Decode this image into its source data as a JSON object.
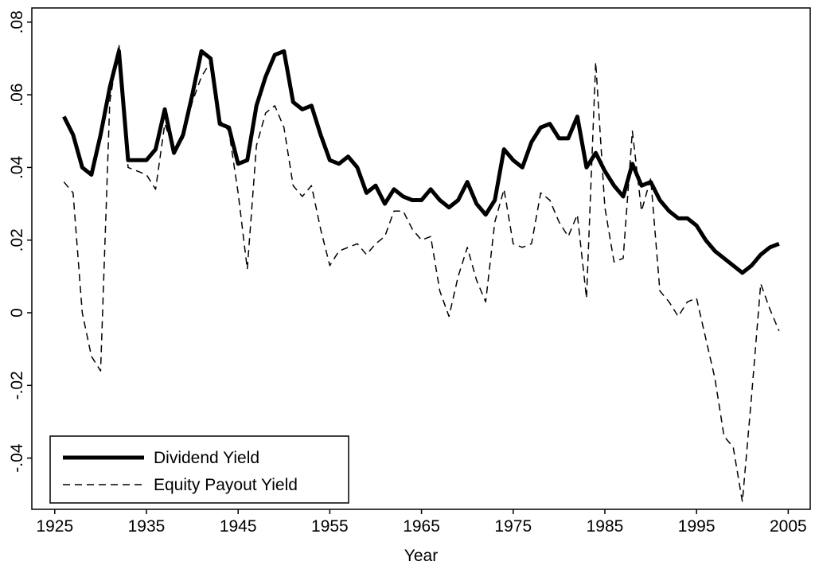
{
  "chart_data": {
    "type": "line",
    "xlabel": "Year",
    "x": [
      1926,
      1927,
      1928,
      1929,
      1930,
      1931,
      1932,
      1933,
      1934,
      1935,
      1936,
      1937,
      1938,
      1939,
      1940,
      1941,
      1942,
      1943,
      1944,
      1945,
      1946,
      1947,
      1948,
      1949,
      1950,
      1951,
      1952,
      1953,
      1954,
      1955,
      1956,
      1957,
      1958,
      1959,
      1960,
      1961,
      1962,
      1963,
      1964,
      1965,
      1966,
      1967,
      1968,
      1969,
      1970,
      1971,
      1972,
      1973,
      1974,
      1975,
      1976,
      1977,
      1978,
      1979,
      1980,
      1981,
      1982,
      1983,
      1984,
      1985,
      1986,
      1987,
      1988,
      1989,
      1990,
      1991,
      1992,
      1993,
      1994,
      1995,
      1996,
      1997,
      1998,
      1999,
      2000,
      2001,
      2002,
      2003,
      2004
    ],
    "series": [
      {
        "name": "Dividend Yield",
        "color": "#000000",
        "style": "solid",
        "values": [
          0.054,
          0.049,
          0.04,
          0.038,
          0.049,
          0.062,
          0.072,
          0.042,
          0.042,
          0.042,
          0.045,
          0.056,
          0.044,
          0.049,
          0.06,
          0.072,
          0.07,
          0.052,
          0.051,
          0.041,
          0.042,
          0.057,
          0.065,
          0.071,
          0.072,
          0.058,
          0.056,
          0.057,
          0.049,
          0.042,
          0.041,
          0.043,
          0.04,
          0.033,
          0.035,
          0.03,
          0.034,
          0.032,
          0.031,
          0.031,
          0.034,
          0.031,
          0.029,
          0.031,
          0.036,
          0.03,
          0.027,
          0.031,
          0.045,
          0.042,
          0.04,
          0.047,
          0.051,
          0.052,
          0.048,
          0.048,
          0.054,
          0.04,
          0.044,
          0.039,
          0.035,
          0.032,
          0.041,
          0.035,
          0.036,
          0.031,
          0.028,
          0.026,
          0.026,
          0.024,
          0.02,
          0.017,
          0.015,
          0.013,
          0.011,
          0.013,
          0.016,
          0.018,
          0.019
        ]
      },
      {
        "name": "Equity Payout Yield",
        "color": "#000000",
        "style": "dashed",
        "values": [
          0.036,
          0.033,
          0.0,
          -0.012,
          -0.016,
          0.058,
          0.074,
          0.04,
          0.039,
          0.038,
          0.034,
          0.052,
          0.045,
          0.048,
          0.058,
          0.065,
          0.069,
          0.053,
          0.05,
          0.033,
          0.012,
          0.046,
          0.055,
          0.057,
          0.051,
          0.035,
          0.032,
          0.035,
          0.023,
          0.013,
          0.017,
          0.018,
          0.019,
          0.016,
          0.019,
          0.021,
          0.028,
          0.028,
          0.023,
          0.02,
          0.021,
          0.006,
          -0.001,
          0.01,
          0.018,
          0.009,
          0.003,
          0.025,
          0.034,
          0.019,
          0.018,
          0.019,
          0.033,
          0.031,
          0.025,
          0.021,
          0.027,
          0.004,
          0.069,
          0.029,
          0.014,
          0.015,
          0.05,
          0.028,
          0.037,
          0.006,
          0.003,
          -0.001,
          0.003,
          0.004,
          -0.007,
          -0.018,
          -0.034,
          -0.037,
          -0.052,
          -0.023,
          0.008,
          0.001,
          -0.005
        ]
      }
    ],
    "xlim": [
      1922.5,
      2007.4
    ],
    "xticks": [
      1925,
      1935,
      1945,
      1955,
      1965,
      1975,
      1985,
      1995,
      2005
    ],
    "ylim": [
      -0.0541,
      0.0839
    ],
    "yticks": [
      {
        "value": -0.04,
        "label": "-.04"
      },
      {
        "value": -0.02,
        "label": "-.02"
      },
      0,
      {
        "value": 0.02,
        "label": ".02"
      },
      {
        "value": 0.04,
        "label": ".04"
      },
      {
        "value": 0.06,
        "label": ".06"
      },
      {
        "value": 0.08,
        "label": ".08"
      }
    ],
    "legend": "lower left",
    "grid": false
  }
}
